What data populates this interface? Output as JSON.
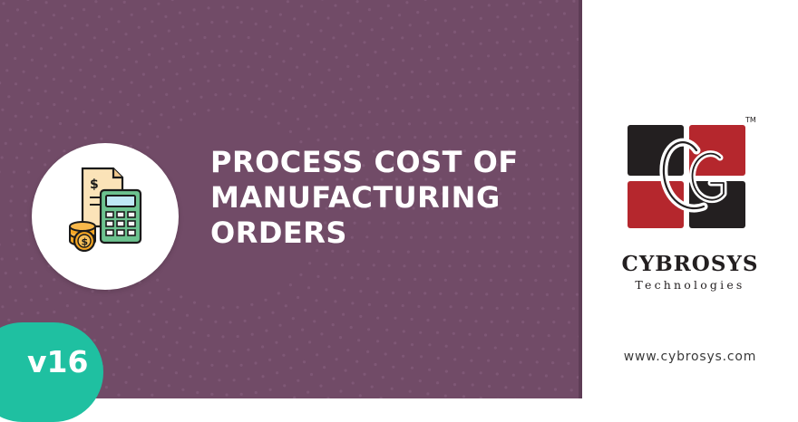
{
  "banner": {
    "title_lines": [
      "PROCESS COST OF",
      "MANUFACTURING",
      "ORDERS"
    ],
    "version": "v16",
    "icon": "calculator-invoice-coins-icon",
    "colors": {
      "background": "#714b67",
      "badge": "#1fc0a1",
      "text": "#ffffff"
    }
  },
  "brand": {
    "logo": "cybrosys-logo",
    "name": "CYBROSYS",
    "subtitle": "Technologies",
    "trademark": "TM",
    "website": "www.cybrosys.com",
    "colors": {
      "logo_dark": "#231f20",
      "logo_red": "#b5272d"
    }
  }
}
